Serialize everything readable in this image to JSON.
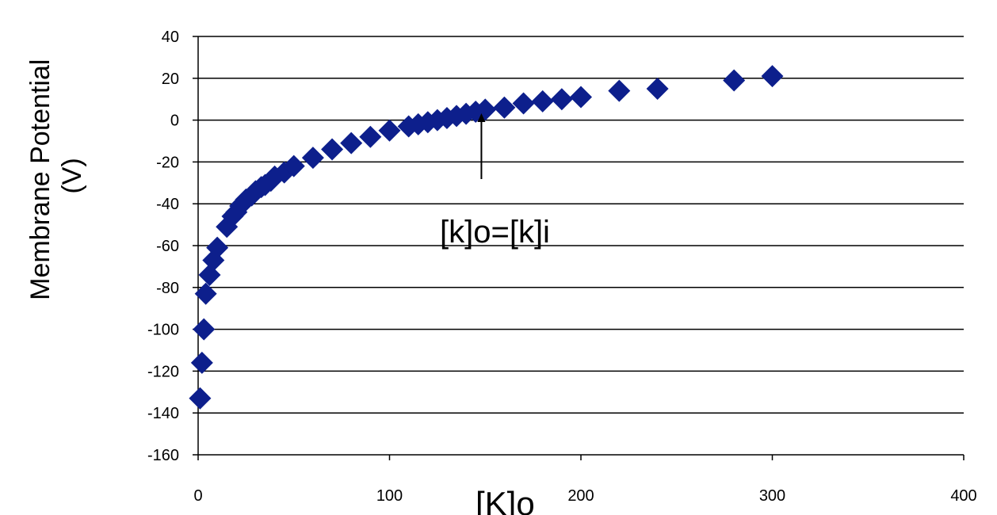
{
  "chart_data": {
    "type": "scatter",
    "xlabel": "[K]o",
    "ylabel": "Membrane Potential (V)",
    "ylabel_lines": [
      "Membrane Potential",
      "(V)"
    ],
    "xlim": [
      0,
      400
    ],
    "ylim": [
      -160,
      40
    ],
    "x_ticks": [
      "0",
      "100",
      "200",
      "300",
      "400"
    ],
    "y_ticks": [
      "40",
      "20",
      "0",
      "-20",
      "-40",
      "-60",
      "-80",
      "-100",
      "-120",
      "-140",
      "-160"
    ],
    "grid": "horizontal",
    "marker": "diamond",
    "color": "#0d1f8c",
    "annotation": {
      "text": "[k]o=[k]i",
      "arrow_to": [
        148,
        4
      ]
    },
    "series": [
      {
        "points": [
          [
            1,
            -133
          ],
          [
            2,
            -116
          ],
          [
            3,
            -100
          ],
          [
            4,
            -83
          ],
          [
            6,
            -74
          ],
          [
            8,
            -67
          ],
          [
            10,
            -61
          ],
          [
            15,
            -51
          ],
          [
            18,
            -46
          ],
          [
            20,
            -44
          ],
          [
            22,
            -41
          ],
          [
            25,
            -38
          ],
          [
            28,
            -36
          ],
          [
            30,
            -34
          ],
          [
            33,
            -32
          ],
          [
            35,
            -31
          ],
          [
            38,
            -29
          ],
          [
            40,
            -27
          ],
          [
            45,
            -25
          ],
          [
            50,
            -22
          ],
          [
            60,
            -18
          ],
          [
            70,
            -14
          ],
          [
            80,
            -11
          ],
          [
            90,
            -8
          ],
          [
            100,
            -5
          ],
          [
            110,
            -3
          ],
          [
            115,
            -2
          ],
          [
            120,
            -1
          ],
          [
            125,
            0
          ],
          [
            130,
            1
          ],
          [
            135,
            2
          ],
          [
            140,
            3
          ],
          [
            145,
            4
          ],
          [
            150,
            5
          ],
          [
            160,
            6
          ],
          [
            170,
            8
          ],
          [
            180,
            9
          ],
          [
            190,
            10
          ],
          [
            200,
            11
          ],
          [
            220,
            14
          ],
          [
            240,
            15
          ],
          [
            280,
            19
          ],
          [
            300,
            21
          ]
        ]
      }
    ]
  }
}
